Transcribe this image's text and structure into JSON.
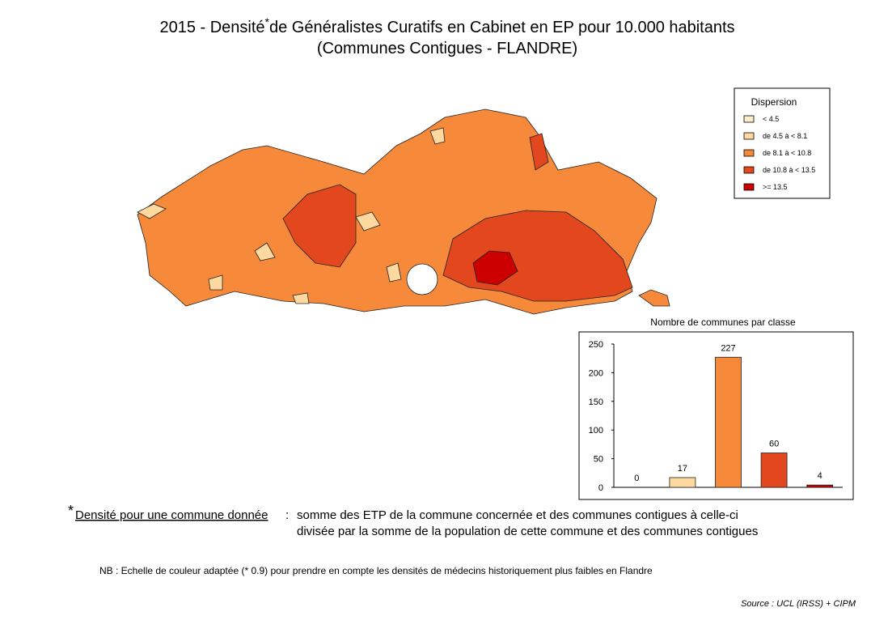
{
  "title": {
    "prefix": "2015 - Densité",
    "mark": "*",
    "rest": "de Généralistes Curatifs en Cabinet en EP pour 10.000 habitants",
    "line2": "(Communes Contigues - FLANDRE)"
  },
  "legend": {
    "title": "Dispersion",
    "items": [
      {
        "label": "< 4.5",
        "color": "#fdf0c8"
      },
      {
        "label": "de 4.5 à < 8.1",
        "color": "#fdd9a0"
      },
      {
        "label": "de 8.1 à < 10.8",
        "color": "#f6893a"
      },
      {
        "label": "de 10.8 à < 13.5",
        "color": "#e3471e"
      },
      {
        "label": ">= 13.5",
        "color": "#cc0000"
      }
    ]
  },
  "chart_data": {
    "type": "bar",
    "title": "Nombre de communes par classe",
    "categories": [
      null,
      null,
      null,
      null,
      null
    ],
    "values": [
      0,
      17,
      227,
      60,
      4
    ],
    "colors": [
      "#fdf0c8",
      "#fdd9a0",
      "#f6893a",
      "#e3471e",
      "#cc0000"
    ],
    "ylim": [
      0,
      250
    ],
    "yticks": [
      0,
      50,
      100,
      150,
      200,
      250
    ]
  },
  "footnote": {
    "mark": "*",
    "term": "Densité pour une commune donnée",
    "separator": ":",
    "line1": "somme des ETP de la commune concernée et des communes contigues à celle-ci",
    "line2": "divisée par la somme de la population de cette commune et des communes contigues"
  },
  "nb": "NB : Echelle de couleur adaptée (* 0.9) pour prendre en compte les densités de médecins historiquement plus faibles en Flandre",
  "source": "Source : UCL (IRSS) + CIPM"
}
